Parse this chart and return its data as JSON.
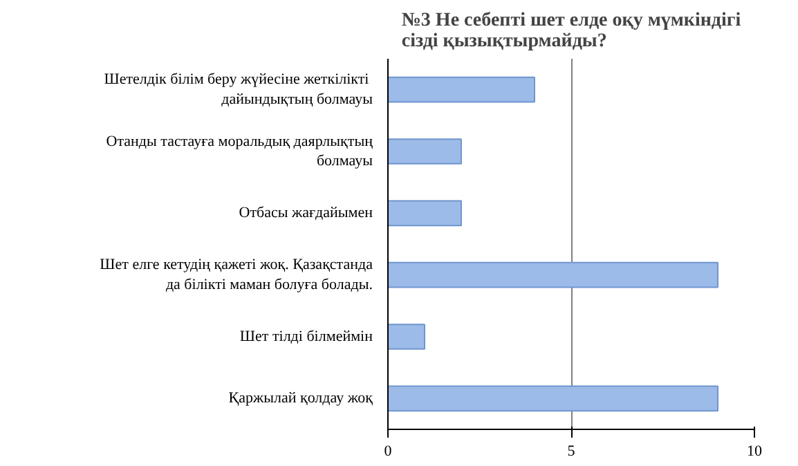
{
  "chart_data": {
    "type": "bar",
    "orientation": "horizontal",
    "title": "№3 Не себепті шет елде оқу мүмкіндігі сізді қызықтырмайды?",
    "categories": [
      "Шетелдік  білім беру жүйесіне жеткілікті дайындықтың болмауы",
      "Отанды тастауға моральдық даярлықтың болмауы",
      "Отбасы жағдайымен",
      "Шет елге кетудің қажеті жоқ. Қазақстанда да білікті маман болуға болады.",
      "Шет тілді білмеймін",
      "Қаржылай қолдау жоқ"
    ],
    "values": [
      4,
      2,
      2,
      9,
      1,
      9
    ],
    "color": "#9dbbe8",
    "xlim": [
      0,
      10
    ],
    "xticks": [
      0,
      5,
      10
    ],
    "grid": "x"
  }
}
